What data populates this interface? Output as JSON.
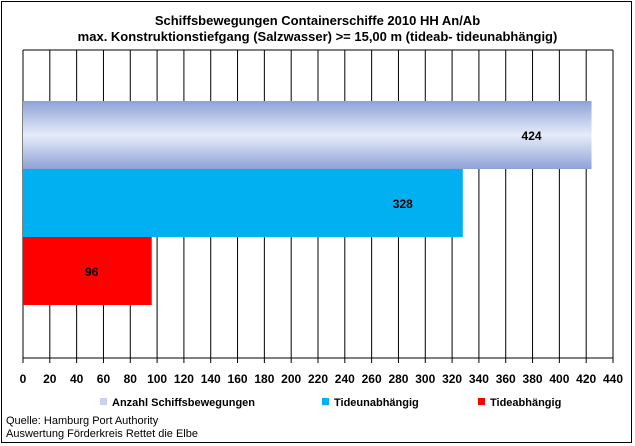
{
  "chart_data": {
    "type": "bar",
    "orientation": "horizontal",
    "title": "Schiffsbewegungen  Containerschiffe  2010 HH An/Ab",
    "subtitle": "max. Konstruktionstiefgang  (Salzwasser)  >= 15,00 m (tideab-  tideunabhängig)",
    "series": [
      {
        "name": "Anzahl  Schiffsbewegungen",
        "value": 424,
        "label": "424",
        "color": "#a8b8e0"
      },
      {
        "name": "Tideunabhängig",
        "value": 328,
        "label": "328",
        "color": "#00b0f0"
      },
      {
        "name": "Tideabhängig",
        "value": 96,
        "label": "96",
        "color": "#ff0000"
      }
    ],
    "xlim": [
      0,
      440
    ],
    "ticks": [
      "0",
      "20",
      "40",
      "60",
      "80",
      "100",
      "120",
      "140",
      "160",
      "180",
      "200",
      "220",
      "240",
      "260",
      "280",
      "300",
      "320",
      "340",
      "360",
      "380",
      "400",
      "420",
      "440"
    ],
    "grid": "vertical",
    "legend_position": "bottom"
  },
  "source": {
    "line1": "Quelle: Hamburg Port Authority",
    "line2": "Auswertung Förderkreis Rettet die Elbe"
  }
}
